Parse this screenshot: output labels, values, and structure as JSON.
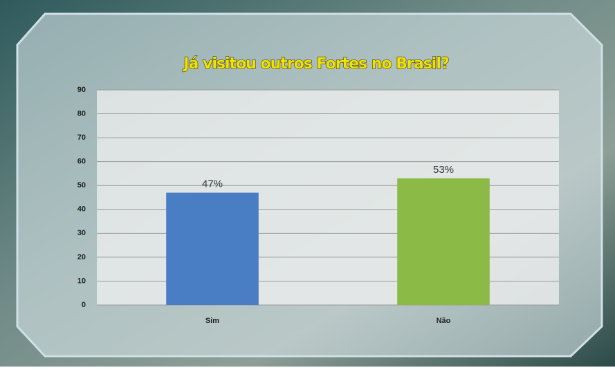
{
  "chart_data": {
    "type": "bar",
    "title": "Já visitou outros Fortes no Brasil?",
    "categories": [
      "Sim",
      "Não"
    ],
    "values": [
      47,
      53
    ],
    "value_labels": [
      "47%",
      "53%"
    ],
    "colors": [
      "#4a7ec4",
      "#8bbb46"
    ],
    "ylim": [
      0,
      90
    ],
    "yticks": [
      0,
      10,
      20,
      30,
      40,
      50,
      60,
      70,
      80,
      90
    ],
    "grid": true
  }
}
